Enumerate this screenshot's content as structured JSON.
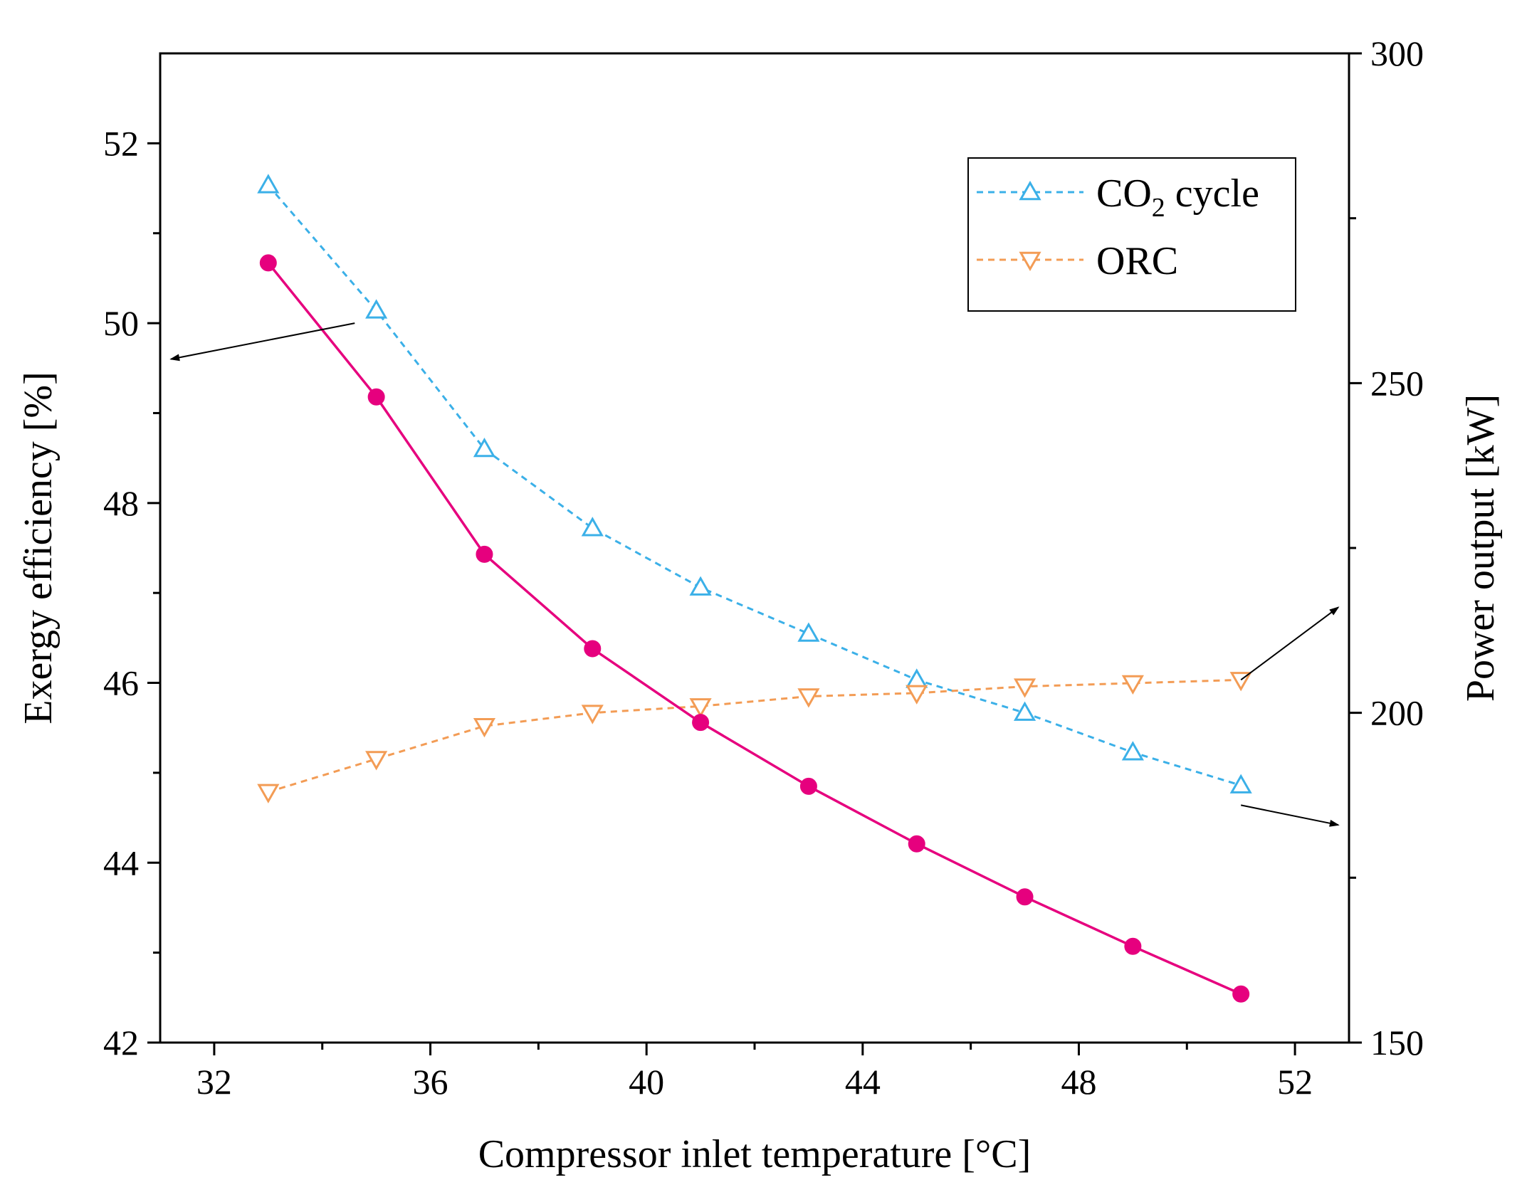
{
  "chart_data": {
    "type": "line",
    "title": "",
    "xlabel": "Compressor inlet temperature [°C]",
    "ylabel_left": "Exergy efficiency [%]",
    "ylabel_right": "Power output [kW]",
    "xlim": [
      31,
      53
    ],
    "ylim_left": [
      42,
      53
    ],
    "ylim_right": [
      150,
      300
    ],
    "x_ticks": [
      32,
      36,
      40,
      44,
      48,
      52
    ],
    "y_left_ticks": [
      42,
      44,
      46,
      48,
      50,
      52
    ],
    "y_right_ticks": [
      150,
      200,
      250,
      300
    ],
    "grid": false,
    "legend_position": "top-right",
    "x": [
      33,
      35,
      37,
      39,
      41,
      43,
      45,
      47,
      49,
      51
    ],
    "series": [
      {
        "name": "Exergy efficiency",
        "axis": "left",
        "color": "#e6007e",
        "style": "solid",
        "marker": "filled-circle",
        "in_legend": false,
        "values": [
          50.67,
          49.18,
          47.43,
          46.38,
          45.56,
          44.85,
          44.21,
          43.62,
          43.07,
          42.54
        ]
      },
      {
        "name": "CO2 cycle",
        "legend_main": "CO",
        "legend_sub": "2",
        "legend_tail": " cycle",
        "axis": "right",
        "color": "#3bb0e8",
        "style": "dashed",
        "marker": "open-triangle-up",
        "in_legend": true,
        "values": [
          280,
          261,
          240,
          228,
          219,
          212,
          205,
          200,
          194,
          189
        ]
      },
      {
        "name": "ORC",
        "legend_main": "ORC",
        "axis": "right",
        "color": "#f39c55",
        "style": "dashed",
        "marker": "open-triangle-down",
        "in_legend": true,
        "values": [
          188,
          193,
          198,
          200,
          201,
          202.5,
          203,
          204,
          204.5,
          205
        ]
      }
    ],
    "annotations": [
      {
        "type": "arrow",
        "from": [
          34.6,
          50.0
        ],
        "to": [
          31.2,
          49.6
        ],
        "axis": "left"
      },
      {
        "type": "arrow",
        "from": [
          51.0,
          205
        ],
        "to": [
          52.8,
          216
        ],
        "axis": "right"
      },
      {
        "type": "arrow",
        "from": [
          51.0,
          186
        ],
        "to": [
          52.8,
          183
        ],
        "axis": "right"
      }
    ]
  }
}
